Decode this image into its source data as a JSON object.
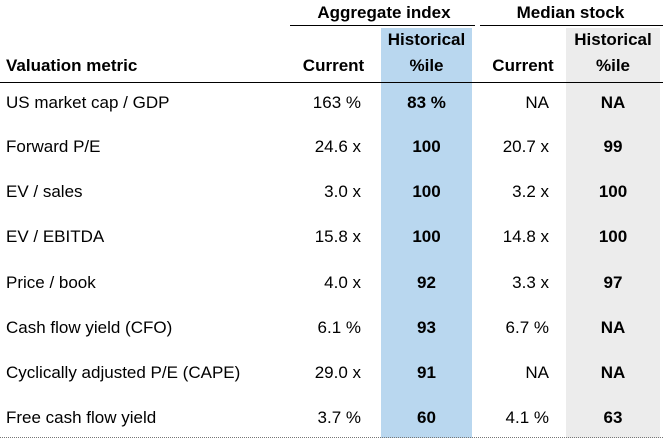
{
  "headers": {
    "aggregate_group": "Aggregate index",
    "median_group": "Median stock",
    "metric": "Valuation metric",
    "agg_current": "Current",
    "agg_hist_line1": "Historical",
    "agg_hist_line2": "%ile",
    "med_current": "Current",
    "med_hist_line1": "Historical",
    "med_hist_line2": "%ile"
  },
  "colors": {
    "aggregate_percentile_highlight": "#b9d7ef",
    "median_percentile_highlight": "#ececec"
  },
  "rows": [
    {
      "metric": "US market cap / GDP",
      "agg_current": "163 %",
      "agg_pct": "83 %",
      "med_current": "NA",
      "med_pct": "NA"
    },
    {
      "metric": "Forward P/E",
      "agg_current": "24.6 x",
      "agg_pct": "100",
      "med_current": "20.7 x",
      "med_pct": "99"
    },
    {
      "metric": "EV / sales",
      "agg_current": "3.0 x",
      "agg_pct": "100",
      "med_current": "3.2 x",
      "med_pct": "100"
    },
    {
      "metric": "EV / EBITDA",
      "agg_current": "15.8 x",
      "agg_pct": "100",
      "med_current": "14.8 x",
      "med_pct": "100"
    },
    {
      "metric": "Price / book",
      "agg_current": "4.0 x",
      "agg_pct": "92",
      "med_current": "3.3 x",
      "med_pct": "97"
    },
    {
      "metric": "Cash flow yield (CFO)",
      "agg_current": "6.1 %",
      "agg_pct": "93",
      "med_current": "6.7 %",
      "med_pct": "NA"
    },
    {
      "metric": "Cyclically adjusted P/E (CAPE)",
      "agg_current": "29.0 x",
      "agg_pct": "91",
      "med_current": "NA",
      "med_pct": "NA"
    },
    {
      "metric": "Free cash flow yield",
      "agg_current": "3.7 %",
      "agg_pct": "60",
      "med_current": "4.1 %",
      "med_pct": "63"
    }
  ]
}
